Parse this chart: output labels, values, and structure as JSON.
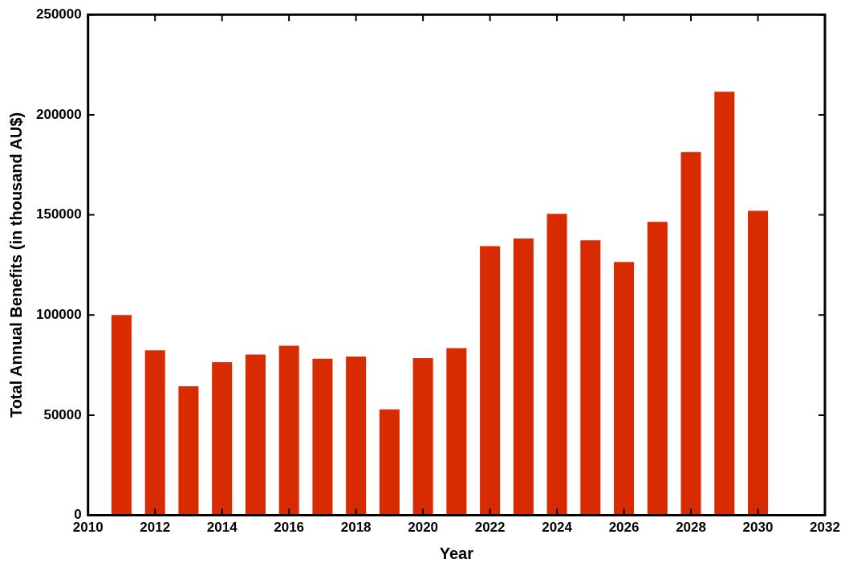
{
  "chart_data": {
    "type": "bar",
    "xlabel": "Year",
    "ylabel": "Total Annual Benefits (in thousand AU$)",
    "x": [
      2011,
      2012,
      2013,
      2014,
      2015,
      2016,
      2017,
      2018,
      2019,
      2020,
      2021,
      2022,
      2023,
      2024,
      2025,
      2026,
      2027,
      2028,
      2029,
      2030
    ],
    "values": [
      100000,
      82400,
      64400,
      76400,
      80200,
      84700,
      78100,
      79200,
      52900,
      78400,
      83500,
      134400,
      138200,
      150500,
      137300,
      126500,
      146500,
      181400,
      211500,
      152000
    ],
    "color": "#d92b02",
    "xlim": [
      2010,
      2032
    ],
    "xticks": [
      2010,
      2012,
      2014,
      2016,
      2018,
      2020,
      2022,
      2024,
      2026,
      2028,
      2030,
      2032
    ],
    "ylim": [
      0,
      250000
    ],
    "yticks": [
      0,
      50000,
      100000,
      150000,
      200000,
      250000
    ],
    "grid": false,
    "legend": false
  }
}
